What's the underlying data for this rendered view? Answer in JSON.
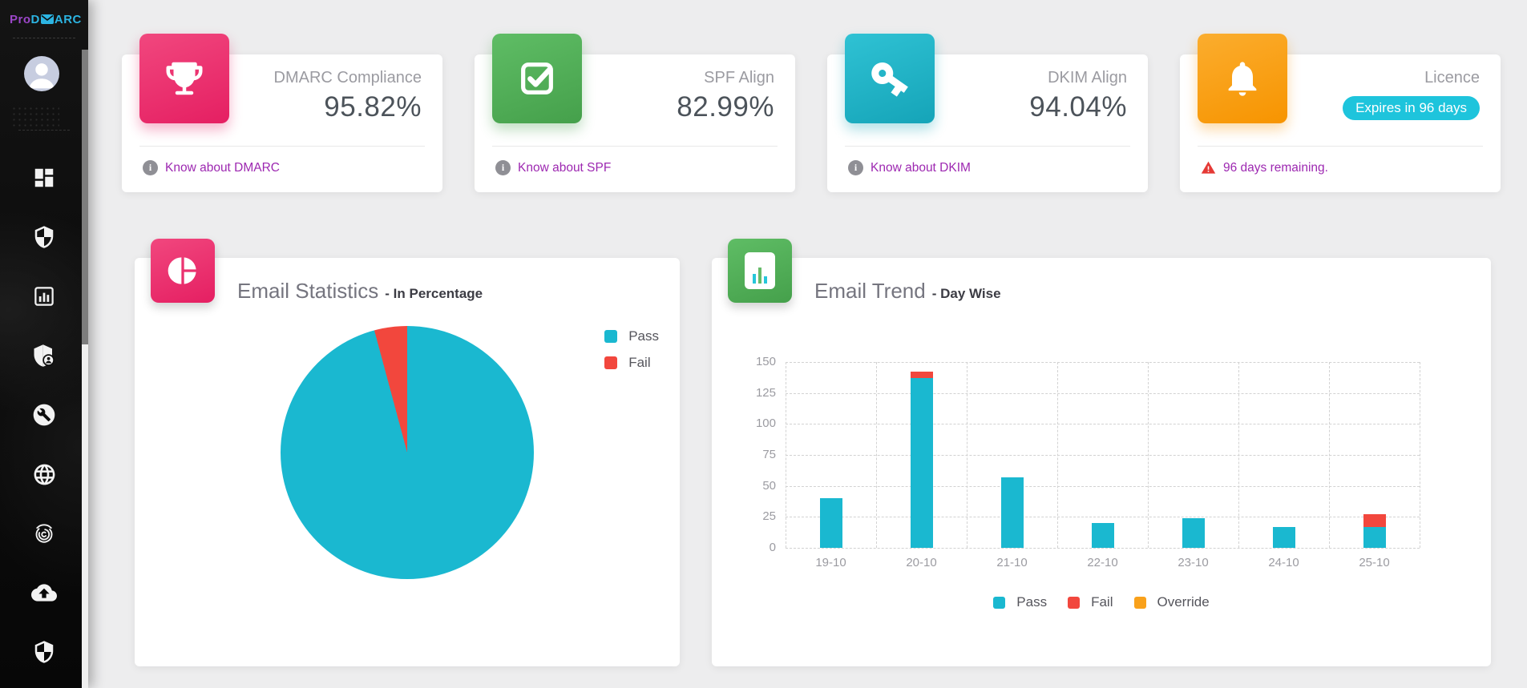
{
  "sidebar": {
    "logo": {
      "pro": "Pro",
      "d": "D",
      "arc": "ARC"
    },
    "icons": [
      "dashboard-icon",
      "shield-icon",
      "report-chart-icon",
      "shield-user-icon",
      "wrench-icon",
      "globe-icon",
      "fingerprint-icon",
      "cloud-upload-icon",
      "shield-check-icon"
    ]
  },
  "cards": [
    {
      "title": "DMARC Compliance",
      "value": "95.82%",
      "footer": "Know about DMARC",
      "icon": "trophy-icon",
      "tile_from": "#f1477e",
      "tile_to": "#e51f62"
    },
    {
      "title": "SPF Align",
      "value": "82.99%",
      "footer": "Know about SPF",
      "icon": "checkbox-icon",
      "tile_from": "#5fbd65",
      "tile_to": "#45a04b"
    },
    {
      "title": "DKIM Align",
      "value": "94.04%",
      "footer": "Know about DKIM",
      "icon": "key-icon",
      "tile_from": "#2fc2d4",
      "tile_to": "#15a4b8"
    },
    {
      "title": "Licence",
      "badge": "Expires in 96 days",
      "footer": "96 days remaining.",
      "icon": "bell-icon",
      "tile_from": "#fbad2e",
      "tile_to": "#f79400"
    }
  ],
  "charts": {
    "stats": {
      "title": "Email Statistics",
      "subtitle": "- In Percentage"
    },
    "trend": {
      "title": "Email Trend",
      "subtitle": "- Day Wise"
    }
  },
  "chart_data": [
    {
      "type": "pie",
      "title": "Email Statistics - In Percentage",
      "labels": [
        "Pass",
        "Fail"
      ],
      "values": [
        95.82,
        4.18
      ],
      "colors": [
        "#1ab8d0",
        "#f2473d"
      ],
      "legend_position": "top-right"
    },
    {
      "type": "bar",
      "stacked": true,
      "title": "Email Trend - Day Wise",
      "categories": [
        "19-10",
        "20-10",
        "21-10",
        "22-10",
        "23-10",
        "24-10",
        "25-10"
      ],
      "series": [
        {
          "name": "Pass",
          "color": "#1ab8d0",
          "values": [
            40,
            137,
            57,
            20,
            24,
            17,
            17
          ]
        },
        {
          "name": "Fail",
          "color": "#f2473d",
          "values": [
            0,
            5,
            0,
            0,
            0,
            0,
            10
          ]
        },
        {
          "name": "Override",
          "color": "#f9a11b",
          "values": [
            0,
            0,
            0,
            0,
            0,
            0,
            0
          ]
        }
      ],
      "ylim": [
        0,
        150
      ],
      "yticks": [
        0,
        25,
        50,
        75,
        100,
        125,
        150
      ],
      "grid": "dashed",
      "legend_position": "bottom"
    }
  ],
  "colors": {
    "pass": "#1ab8d0",
    "fail": "#f2473d",
    "override": "#f9a11b",
    "badge": "#1ec4dc",
    "link_purple": "#9d28b1",
    "warning_red": "#e53935"
  }
}
